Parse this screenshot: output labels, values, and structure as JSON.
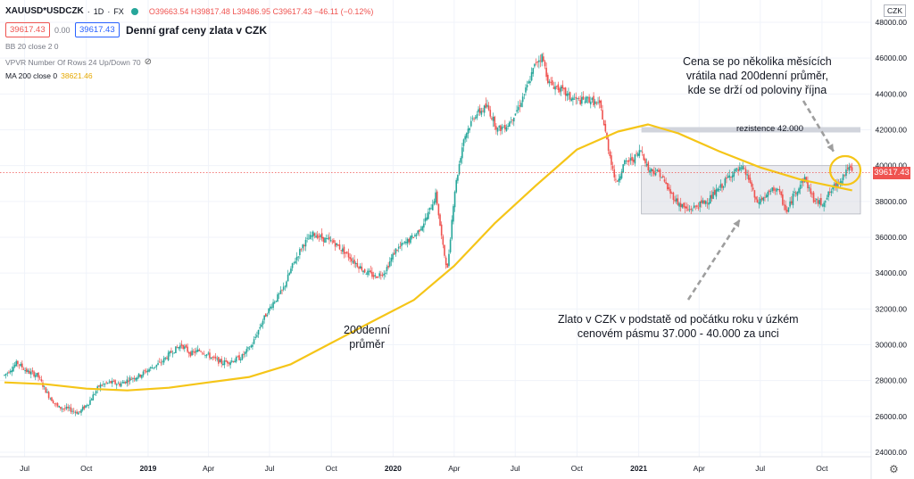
{
  "header": {
    "symbol": "XAUUSD*USDCZK",
    "interval": "1D",
    "exchange": "FX",
    "ohlc": "O39663.54 H39817.48 L39486.95 C39617.43 −46.11 (−0.12%)",
    "price_sell": "39617.43",
    "spread": "0.00",
    "price_buy": "39617.43",
    "chart_title": "Denní graf ceny zlata v CZK"
  },
  "indicators": [
    {
      "label": "BB 20 close 2 0",
      "value": ""
    },
    {
      "label": "VPVR Number Of Rows 24 Up/Down 70",
      "value": ""
    },
    {
      "label": "MA 200 close 0",
      "value": "38621.46"
    }
  ],
  "currency": "CZK",
  "last_price_label": "39617.43",
  "annotations": {
    "top_right": [
      "Cena se po několika měsících",
      "vrátila nad 200denní průměr,",
      "kde se drží od poloviny října"
    ],
    "ma_label": [
      "200denní",
      "průměr"
    ],
    "bottom": [
      "Zlato v CZK v podstatě od počátku roku v úzkém",
      "cenovém pásmu 37.000 - 40.000 za unci"
    ],
    "resistance": "rezistence 42.000"
  },
  "colors": {
    "up": "#26a69a",
    "down": "#ef5350",
    "ma": "#f5c518",
    "band": "#d1d4dc",
    "arrow": "#9e9e9e"
  },
  "chart_data": {
    "type": "candlestick",
    "y_axis": {
      "ticks": [
        24000,
        26000,
        28000,
        30000,
        32000,
        34000,
        36000,
        38000,
        40000,
        42000,
        44000,
        46000,
        48000
      ],
      "min": 24000,
      "max": 48500
    },
    "x_axis": {
      "ticks": [
        "Jul",
        "Oct",
        "2019",
        "Apr",
        "Jul",
        "Oct",
        "2020",
        "Apr",
        "Jul",
        "Oct",
        "2021",
        "Apr",
        "Jul",
        "Oct"
      ],
      "range": [
        "2018-06",
        "2021-11"
      ]
    },
    "price_path": [
      [
        "2018-06-01",
        28300
      ],
      [
        "2018-06-20",
        29000
      ],
      [
        "2018-07-05",
        28500
      ],
      [
        "2018-07-20",
        28300
      ],
      [
        "2018-08-05",
        27200
      ],
      [
        "2018-08-20",
        26500
      ],
      [
        "2018-09-05",
        26400
      ],
      [
        "2018-09-20",
        26200
      ],
      [
        "2018-10-05",
        26800
      ],
      [
        "2018-10-20",
        27700
      ],
      [
        "2018-11-05",
        27900
      ],
      [
        "2018-11-20",
        27800
      ],
      [
        "2018-12-05",
        28100
      ],
      [
        "2018-12-20",
        28300
      ],
      [
        "2019-01-05",
        28700
      ],
      [
        "2019-01-20",
        29000
      ],
      [
        "2019-02-05",
        29600
      ],
      [
        "2019-02-20",
        30000
      ],
      [
        "2019-03-05",
        29500
      ],
      [
        "2019-03-20",
        29700
      ],
      [
        "2019-04-05",
        29300
      ],
      [
        "2019-04-20",
        29000
      ],
      [
        "2019-05-05",
        29100
      ],
      [
        "2019-05-20",
        29300
      ],
      [
        "2019-06-05",
        30000
      ],
      [
        "2019-06-20",
        31300
      ],
      [
        "2019-07-05",
        32300
      ],
      [
        "2019-07-20",
        33000
      ],
      [
        "2019-08-05",
        34500
      ],
      [
        "2019-08-20",
        35600
      ],
      [
        "2019-09-05",
        36200
      ],
      [
        "2019-09-20",
        35900
      ],
      [
        "2019-10-05",
        35700
      ],
      [
        "2019-10-20",
        35200
      ],
      [
        "2019-11-05",
        34600
      ],
      [
        "2019-11-20",
        34100
      ],
      [
        "2019-12-05",
        33800
      ],
      [
        "2019-12-20",
        34100
      ],
      [
        "2020-01-05",
        35300
      ],
      [
        "2020-01-20",
        35700
      ],
      [
        "2020-02-05",
        36200
      ],
      [
        "2020-02-20",
        37100
      ],
      [
        "2020-03-05",
        38400
      ],
      [
        "2020-03-15",
        35500
      ],
      [
        "2020-03-22",
        34200
      ],
      [
        "2020-04-01",
        38400
      ],
      [
        "2020-04-15",
        41500
      ],
      [
        "2020-05-01",
        42800
      ],
      [
        "2020-05-20",
        43300
      ],
      [
        "2020-06-05",
        42000
      ],
      [
        "2020-06-20",
        42300
      ],
      [
        "2020-07-05",
        43200
      ],
      [
        "2020-07-20",
        44500
      ],
      [
        "2020-08-01",
        45800
      ],
      [
        "2020-08-10",
        46100
      ],
      [
        "2020-08-20",
        44600
      ],
      [
        "2020-09-05",
        44300
      ],
      [
        "2020-09-20",
        43800
      ],
      [
        "2020-10-05",
        43600
      ],
      [
        "2020-10-20",
        43700
      ],
      [
        "2020-11-05",
        43300
      ],
      [
        "2020-11-15",
        41300
      ],
      [
        "2020-11-28",
        39000
      ],
      [
        "2020-12-10",
        40100
      ],
      [
        "2020-12-25",
        40400
      ],
      [
        "2021-01-05",
        40900
      ],
      [
        "2021-01-15",
        39800
      ],
      [
        "2021-02-01",
        39600
      ],
      [
        "2021-02-15",
        38600
      ],
      [
        "2021-03-01",
        37900
      ],
      [
        "2021-03-15",
        37500
      ],
      [
        "2021-04-01",
        37800
      ],
      [
        "2021-04-15",
        38100
      ],
      [
        "2021-05-01",
        38700
      ],
      [
        "2021-05-20",
        39600
      ],
      [
        "2021-06-05",
        39800
      ],
      [
        "2021-06-15",
        39200
      ],
      [
        "2021-06-25",
        37900
      ],
      [
        "2021-07-10",
        38300
      ],
      [
        "2021-07-25",
        38800
      ],
      [
        "2021-08-10",
        37400
      ],
      [
        "2021-08-20",
        38400
      ],
      [
        "2021-09-05",
        39300
      ],
      [
        "2021-09-20",
        38000
      ],
      [
        "2021-10-01",
        37900
      ],
      [
        "2021-10-15",
        38600
      ],
      [
        "2021-11-01",
        39400
      ],
      [
        "2021-11-08",
        39900
      ],
      [
        "2021-11-15",
        39617
      ]
    ],
    "ma200_path": [
      [
        "2018-06-01",
        27900
      ],
      [
        "2018-08-01",
        27800
      ],
      [
        "2018-10-01",
        27550
      ],
      [
        "2018-12-01",
        27450
      ],
      [
        "2019-02-01",
        27600
      ],
      [
        "2019-04-01",
        27900
      ],
      [
        "2019-06-01",
        28200
      ],
      [
        "2019-08-01",
        28900
      ],
      [
        "2019-10-01",
        30100
      ],
      [
        "2019-12-01",
        31300
      ],
      [
        "2020-02-01",
        32500
      ],
      [
        "2020-04-01",
        34400
      ],
      [
        "2020-06-01",
        36800
      ],
      [
        "2020-08-01",
        38900
      ],
      [
        "2020-10-01",
        40900
      ],
      [
        "2020-12-01",
        41900
      ],
      [
        "2021-01-15",
        42300
      ],
      [
        "2021-03-01",
        41800
      ],
      [
        "2021-05-01",
        40800
      ],
      [
        "2021-07-01",
        39900
      ],
      [
        "2021-09-01",
        39200
      ],
      [
        "2021-11-15",
        38620
      ]
    ],
    "resistance_level": 42000,
    "range_band": [
      37300,
      40000
    ],
    "last_price": 39617.43,
    "ma200_last": 38621.46
  }
}
